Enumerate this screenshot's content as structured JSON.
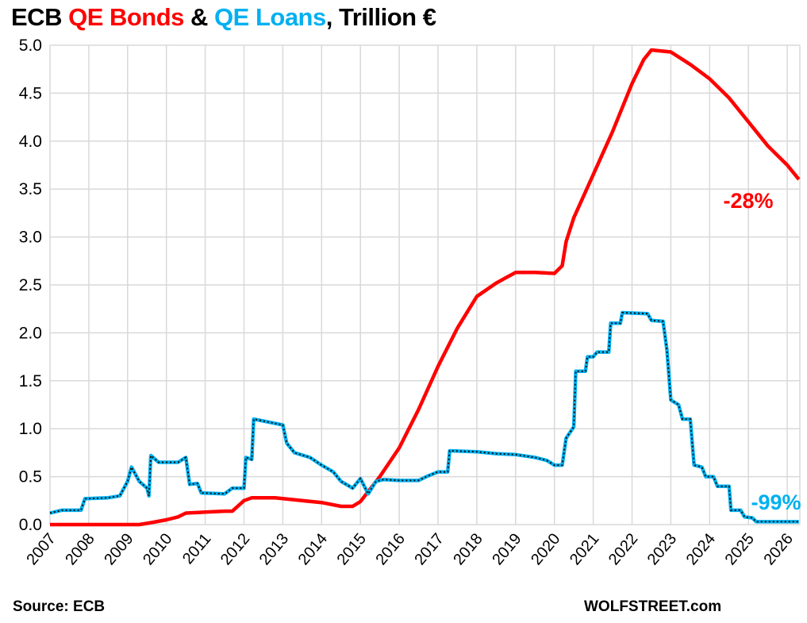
{
  "title": {
    "part1": "ECB ",
    "part2": "QE Bonds",
    "part3": " & ",
    "part4": "QE Loans",
    "part5": ", Trillion €"
  },
  "source": "Source: ECB",
  "credit": "WOLFSTREET.com",
  "chart_data": {
    "type": "line",
    "xlim": [
      2007,
      2026.35
    ],
    "ylim": [
      0,
      5
    ],
    "grid": true,
    "x_ticks": [
      "2007",
      "2008",
      "2009",
      "2010",
      "2011",
      "2012",
      "2013",
      "2014",
      "2015",
      "2016",
      "2017",
      "2018",
      "2019",
      "2020",
      "2021",
      "2022",
      "2023",
      "2024",
      "2025",
      "2026"
    ],
    "y_ticks": [
      "0.0",
      "0.5",
      "1.0",
      "1.5",
      "2.0",
      "2.5",
      "3.0",
      "3.5",
      "4.0",
      "4.5",
      "5.0"
    ],
    "colors": {
      "bonds": "#ff0000",
      "loans": "#00b0f0"
    },
    "annotations": [
      {
        "text": "-28%",
        "series": "QE Bonds",
        "color": "#ff0000"
      },
      {
        "text": "-99%",
        "series": "QE Loans",
        "color": "#00b0f0"
      }
    ],
    "series": [
      {
        "name": "QE Bonds",
        "x": [
          2007,
          2009.3,
          2009.6,
          2010.0,
          2010.3,
          2010.5,
          2011.0,
          2011.5,
          2011.7,
          2012.0,
          2012.2,
          2012.8,
          2013.5,
          2014.0,
          2014.5,
          2014.8,
          2015.0,
          2015.5,
          2016.0,
          2016.5,
          2017.0,
          2017.5,
          2018.0,
          2018.5,
          2019.0,
          2019.5,
          2020.0,
          2020.2,
          2020.3,
          2020.5,
          2021.0,
          2021.5,
          2022.0,
          2022.3,
          2022.5,
          2023.0,
          2023.5,
          2024.0,
          2024.5,
          2025.0,
          2025.5,
          2026.0,
          2026.3
        ],
        "y": [
          0,
          0,
          0.02,
          0.05,
          0.08,
          0.12,
          0.13,
          0.14,
          0.14,
          0.25,
          0.28,
          0.28,
          0.25,
          0.23,
          0.19,
          0.19,
          0.24,
          0.5,
          0.8,
          1.2,
          1.65,
          2.05,
          2.38,
          2.52,
          2.63,
          2.63,
          2.62,
          2.7,
          2.95,
          3.2,
          3.65,
          4.1,
          4.6,
          4.85,
          4.95,
          4.93,
          4.8,
          4.65,
          4.45,
          4.2,
          3.95,
          3.75,
          3.6
        ]
      },
      {
        "name": "QE Loans",
        "x": [
          2007.0,
          2007.3,
          2007.8,
          2007.9,
          2008.5,
          2008.8,
          2009.0,
          2009.1,
          2009.3,
          2009.5,
          2009.55,
          2009.6,
          2009.8,
          2010.0,
          2010.3,
          2010.5,
          2010.6,
          2010.8,
          2010.9,
          2011.5,
          2011.7,
          2012.0,
          2012.05,
          2012.2,
          2012.25,
          2012.5,
          2013.0,
          2013.1,
          2013.3,
          2013.7,
          2014.0,
          2014.3,
          2014.5,
          2014.8,
          2015.0,
          2015.2,
          2015.4,
          2015.6,
          2016.0,
          2016.5,
          2016.7,
          2017.0,
          2017.25,
          2017.3,
          2018.0,
          2018.5,
          2019.0,
          2019.5,
          2019.8,
          2020.0,
          2020.2,
          2020.3,
          2020.5,
          2020.55,
          2020.8,
          2020.85,
          2021.0,
          2021.1,
          2021.4,
          2021.45,
          2021.7,
          2021.75,
          2022.4,
          2022.5,
          2022.8,
          2022.9,
          2023.0,
          2023.2,
          2023.3,
          2023.5,
          2023.6,
          2023.8,
          2023.9,
          2024.1,
          2024.2,
          2024.5,
          2024.55,
          2024.8,
          2024.9,
          2025.1,
          2025.2,
          2026.3
        ],
        "y": [
          0.12,
          0.15,
          0.15,
          0.27,
          0.28,
          0.3,
          0.45,
          0.6,
          0.45,
          0.38,
          0.3,
          0.72,
          0.65,
          0.65,
          0.65,
          0.7,
          0.42,
          0.43,
          0.33,
          0.32,
          0.38,
          0.38,
          0.7,
          0.68,
          1.1,
          1.08,
          1.04,
          0.85,
          0.75,
          0.7,
          0.62,
          0.55,
          0.45,
          0.38,
          0.48,
          0.32,
          0.45,
          0.47,
          0.46,
          0.46,
          0.5,
          0.55,
          0.55,
          0.77,
          0.76,
          0.74,
          0.73,
          0.7,
          0.67,
          0.62,
          0.62,
          0.9,
          1.02,
          1.6,
          1.6,
          1.75,
          1.75,
          1.8,
          1.8,
          2.1,
          2.1,
          2.21,
          2.2,
          2.13,
          2.12,
          1.82,
          1.3,
          1.25,
          1.1,
          1.1,
          0.62,
          0.6,
          0.5,
          0.5,
          0.4,
          0.4,
          0.15,
          0.15,
          0.08,
          0.07,
          0.03,
          0.03
        ]
      }
    ]
  }
}
